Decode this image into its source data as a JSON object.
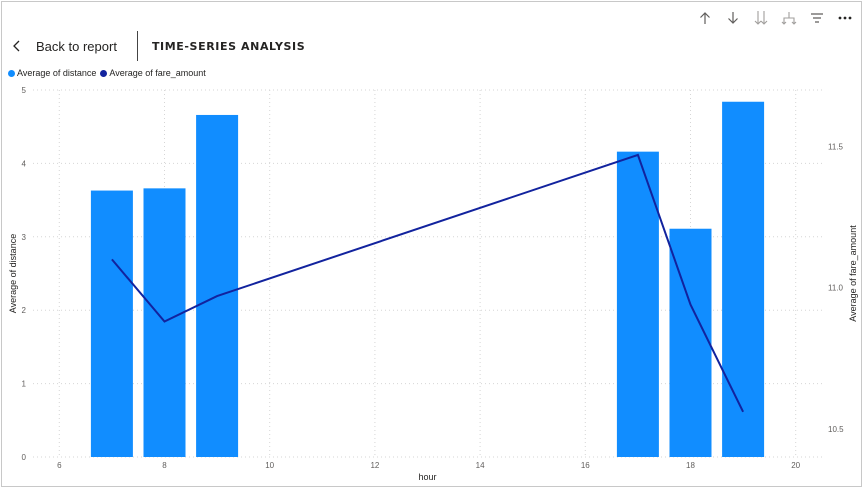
{
  "header": {
    "back_label": "Back to report",
    "title": "TIME-SERIES ANALYSIS"
  },
  "toolbar": {
    "icons": [
      "arrow-up-icon",
      "arrow-down-icon",
      "double-arrow-down-icon",
      "expand-hierarchy-icon",
      "filter-icon",
      "more-options-icon"
    ]
  },
  "colors": {
    "bar": "#118dff",
    "line": "#12239e",
    "grid": "#d6d6d6",
    "text": "#605e5c"
  },
  "chart_data": {
    "type": "bar",
    "title": "",
    "xlabel": "hour",
    "ylabel": "Average of distance",
    "y2label": "Average of fare_amount",
    "xlim": [
      5.5,
      20.5
    ],
    "ylim": [
      0,
      5
    ],
    "y2lim": [
      10.4,
      11.7
    ],
    "x_ticks": [
      6,
      8,
      10,
      12,
      14,
      16,
      18,
      20
    ],
    "y_ticks": [
      0,
      1,
      2,
      3,
      4,
      5
    ],
    "y2_ticks": [
      "10.5",
      "11.0",
      "11.5"
    ],
    "y2_tick_values": [
      10.5,
      11.0,
      11.5
    ],
    "legend_position": "top-left",
    "grid": true,
    "series": [
      {
        "name": "Average of distance",
        "type": "bar",
        "axis": "left",
        "x": [
          7,
          8,
          9,
          17,
          18,
          19
        ],
        "values": [
          3.63,
          3.66,
          4.66,
          4.16,
          3.11,
          4.84
        ]
      },
      {
        "name": "Average of fare_amount",
        "type": "line",
        "axis": "right",
        "x": [
          7,
          8,
          9,
          17,
          18,
          19
        ],
        "values": [
          11.1,
          10.88,
          10.97,
          11.47,
          10.94,
          10.56
        ]
      }
    ]
  }
}
